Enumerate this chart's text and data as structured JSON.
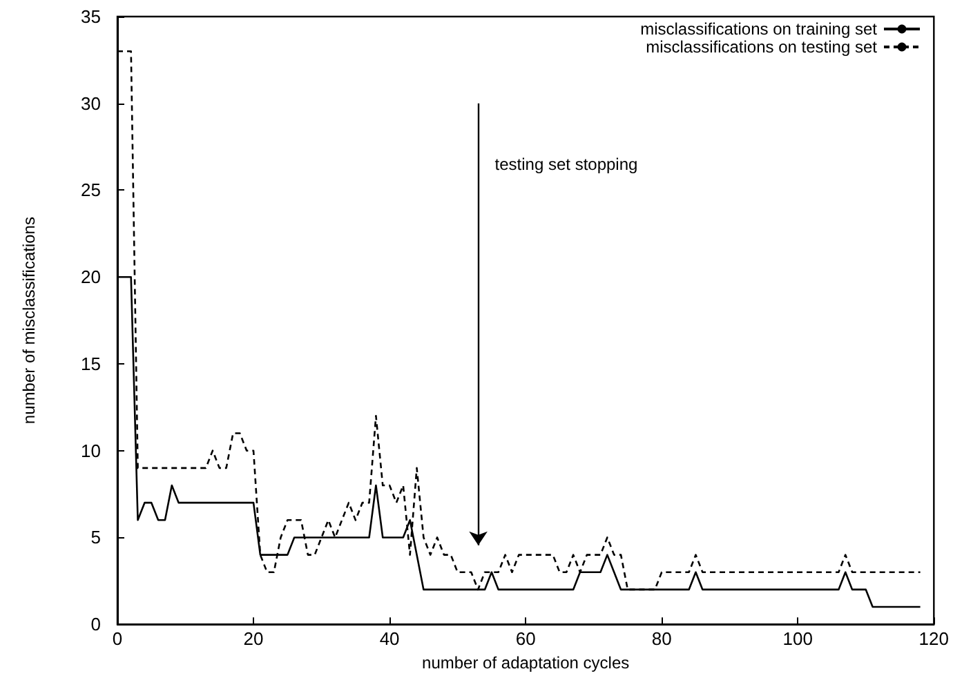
{
  "chart_data": {
    "type": "line",
    "xlabel": "number of adaptation cycles",
    "ylabel": "number of misclassifications",
    "xlim": [
      0,
      120
    ],
    "ylim": [
      0,
      35
    ],
    "xticks": [
      0,
      20,
      40,
      60,
      80,
      100,
      120
    ],
    "yticks": [
      0,
      5,
      10,
      15,
      20,
      25,
      30,
      35
    ],
    "grid": false,
    "legend": "top right",
    "marker": "none",
    "annotations": [
      "testing set stopping"
    ],
    "series": [
      {
        "name": "misclassifications on training set",
        "color": "#000000",
        "line_style": "solid",
        "x": [
          0,
          2,
          3,
          4,
          5,
          6,
          7,
          8,
          9,
          20,
          21,
          25,
          26,
          37,
          38,
          39,
          42,
          43,
          44,
          45,
          53,
          54,
          55,
          56,
          67,
          68,
          71,
          72,
          73,
          74,
          84,
          85,
          86,
          106,
          107,
          108,
          110,
          111,
          118
        ],
        "values": [
          20,
          20,
          6,
          7,
          7,
          6,
          6,
          8,
          7,
          7,
          4,
          4,
          5,
          5,
          8,
          5,
          5,
          6,
          4,
          2,
          2,
          2,
          3,
          2,
          2,
          3,
          3,
          4,
          3,
          2,
          2,
          3,
          2,
          2,
          3,
          2,
          2,
          1,
          1
        ]
      },
      {
        "name": "misclassifications on testing set",
        "color": "#000000",
        "line_style": "dashed",
        "x": [
          0,
          2,
          3,
          13,
          14,
          15,
          16,
          17,
          18,
          19,
          20,
          21,
          22,
          23,
          24,
          25,
          27,
          28,
          29,
          30,
          31,
          32,
          33,
          34,
          35,
          36,
          37,
          38,
          39,
          40,
          41,
          42,
          43,
          44,
          45,
          46,
          47,
          48,
          49,
          50,
          52,
          53,
          54,
          56,
          57,
          58,
          59,
          64,
          65,
          66,
          67,
          68,
          69,
          71,
          72,
          73,
          74,
          75,
          79,
          80,
          84,
          85,
          86,
          106,
          107,
          108,
          118
        ],
        "values": [
          33,
          33,
          9,
          9,
          10,
          9,
          9,
          11,
          11,
          10,
          10,
          4,
          3,
          3,
          5,
          6,
          6,
          4,
          4,
          5,
          6,
          5,
          6,
          7,
          6,
          7,
          7,
          12,
          8,
          8,
          7,
          8,
          4,
          9,
          5,
          4,
          5,
          4,
          4,
          3,
          3,
          2,
          3,
          3,
          4,
          3,
          4,
          4,
          3,
          3,
          4,
          3,
          4,
          4,
          5,
          4,
          4,
          2,
          2,
          3,
          3,
          4,
          3,
          3,
          4,
          3,
          3
        ]
      }
    ]
  }
}
